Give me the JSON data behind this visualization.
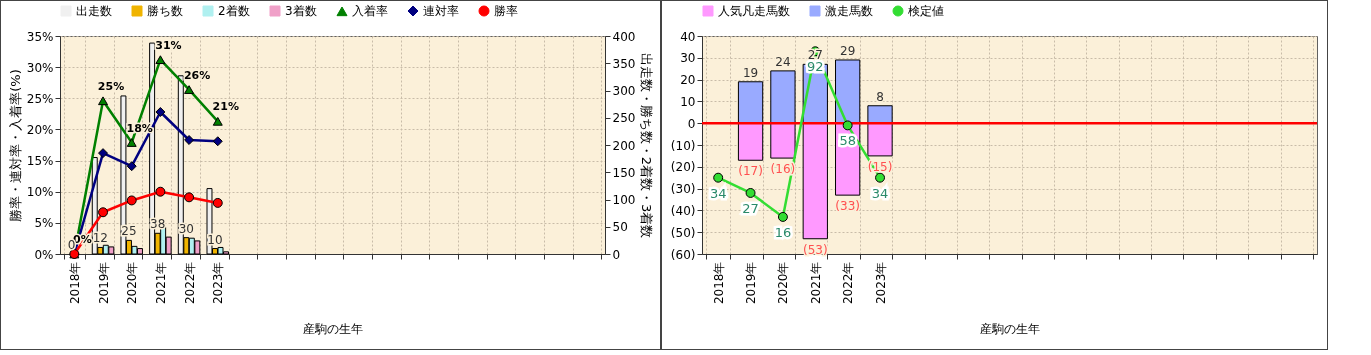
{
  "chart_data": [
    {
      "type": "bar",
      "xlabel": "産駒の生年",
      "ylabel": "勝率・連対率・入着率(%)",
      "y2label": "出走数・勝ち数・2着数・3着数",
      "categories": [
        "2018年",
        "2019年",
        "2020年",
        "2021年",
        "2022年",
        "2023年",
        null,
        null,
        null,
        null,
        null,
        null,
        null,
        null,
        null,
        null,
        null,
        null,
        null
      ],
      "series": [
        {
          "name": "出走数",
          "color": "#f0f0f0",
          "axis": "y2",
          "values": [
            0,
            177,
            290,
            387,
            327,
            120,
            null,
            null,
            null,
            null,
            null,
            null,
            null,
            null,
            null,
            null,
            null,
            null,
            null
          ]
        },
        {
          "name": "勝ち数",
          "color": "#f0b400",
          "axis": "y2",
          "values": [
            0,
            12,
            25,
            38,
            30,
            10,
            null,
            null,
            null,
            null,
            null,
            null,
            null,
            null,
            null,
            null,
            null,
            null,
            null
          ],
          "value_labels": [
            "0",
            "12",
            "25",
            "38",
            "30",
            "10",
            null,
            null,
            null,
            null,
            null,
            null,
            null,
            null,
            null,
            null,
            null,
            null,
            null
          ]
        },
        {
          "name": "2着数",
          "color": "#b0f0f0",
          "axis": "y2",
          "values": [
            0,
            16,
            14,
            49,
            29,
            12,
            null,
            null,
            null,
            null,
            null,
            null,
            null,
            null,
            null,
            null,
            null,
            null,
            null
          ]
        },
        {
          "name": "3着数",
          "color": "#f0a0c8",
          "axis": "y2",
          "values": [
            0,
            13,
            10,
            31,
            24,
            4,
            null,
            null,
            null,
            null,
            null,
            null,
            null,
            null,
            null,
            null,
            null,
            null,
            null
          ]
        },
        {
          "name": "入着率",
          "type": "line",
          "color": "#008000",
          "marker": "triangle",
          "values": [
            0,
            24.6,
            17.9,
            31.2,
            26.4,
            21.3,
            null,
            null,
            null,
            null,
            null,
            null,
            null,
            null,
            null,
            null,
            null,
            null,
            null
          ],
          "value_labels": [
            "0%",
            "25%",
            "18%",
            "31%",
            "26%",
            "21%",
            null,
            null,
            null,
            null,
            null,
            null,
            null,
            null,
            null,
            null,
            null,
            null,
            null
          ]
        },
        {
          "name": "連対率",
          "type": "line",
          "color": "#000080",
          "marker": "diamond",
          "values": [
            0,
            16.2,
            14.1,
            22.8,
            18.3,
            18.1,
            null,
            null,
            null,
            null,
            null,
            null,
            null,
            null,
            null,
            null,
            null,
            null,
            null
          ]
        },
        {
          "name": "勝率",
          "type": "line",
          "color": "#ff0000",
          "marker": "circle",
          "values": [
            0,
            6.7,
            8.6,
            10.0,
            9.1,
            8.2,
            null,
            null,
            null,
            null,
            null,
            null,
            null,
            null,
            null,
            null,
            null,
            null,
            null
          ]
        }
      ],
      "ylim": [
        0,
        35
      ],
      "yticks": [
        {
          "value": 0,
          "label": "0%"
        },
        {
          "value": 5,
          "label": "5%"
        },
        {
          "value": 10,
          "label": "10%"
        },
        {
          "value": 15,
          "label": "15%"
        },
        {
          "value": 20,
          "label": "20%"
        },
        {
          "value": 25,
          "label": "25%"
        },
        {
          "value": 30,
          "label": "30%"
        },
        {
          "value": 35,
          "label": "35%"
        }
      ],
      "y2lim": [
        0,
        400
      ],
      "y2ticks": [
        0,
        50,
        100,
        150,
        200,
        250,
        300,
        350,
        400
      ],
      "grid": true,
      "legend": "top"
    },
    {
      "type": "bar",
      "stacked": true,
      "xlabel": "産駒の生年",
      "categories": [
        "2018年",
        "2019年",
        "2020年",
        "2021年",
        "2022年",
        "2023年",
        null,
        null,
        null,
        null,
        null,
        null,
        null,
        null,
        null,
        null,
        null,
        null,
        null
      ],
      "series": [
        {
          "name": "人気凡走馬数",
          "color": "#ff99ff",
          "values": [
            null,
            -17,
            -16,
            -53,
            -33,
            -15,
            null,
            null,
            null,
            null,
            null,
            null,
            null,
            null,
            null,
            null,
            null,
            null,
            null
          ],
          "value_labels": [
            null,
            "(17)",
            "(16)",
            "(53)",
            "(33)",
            "(15)",
            null,
            null,
            null,
            null,
            null,
            null,
            null,
            null,
            null,
            null,
            null,
            null,
            null
          ]
        },
        {
          "name": "激走馬数",
          "color": "#99aaff",
          "values": [
            null,
            19,
            24,
            27,
            29,
            8,
            null,
            null,
            null,
            null,
            null,
            null,
            null,
            null,
            null,
            null,
            null,
            null,
            null
          ],
          "value_labels": [
            null,
            "19",
            "24",
            "27",
            "29",
            "8",
            null,
            null,
            null,
            null,
            null,
            null,
            null,
            null,
            null,
            null,
            null,
            null,
            null
          ]
        },
        {
          "name": "検定値",
          "type": "line",
          "color": "#33dd33",
          "marker": "circle",
          "axis": "y2",
          "values": [
            34,
            27,
            16,
            92,
            58,
            34,
            null,
            null,
            null,
            null,
            null,
            null,
            null,
            null,
            null,
            null,
            null,
            null,
            null
          ],
          "value_labels": [
            "34",
            "27",
            "16",
            "92",
            "58",
            "34",
            null,
            null,
            null,
            null,
            null,
            null,
            null,
            null,
            null,
            null,
            null,
            null,
            null
          ]
        }
      ],
      "ylim": [
        -60,
        40
      ],
      "yticks": [
        {
          "value": -60,
          "label": "(60)"
        },
        {
          "value": -50,
          "label": "(50)"
        },
        {
          "value": -40,
          "label": "(40)"
        },
        {
          "value": -30,
          "label": "(30)"
        },
        {
          "value": -20,
          "label": "(20)"
        },
        {
          "value": -10,
          "label": "(10)"
        },
        0,
        10,
        20,
        30,
        40
      ],
      "y2lim": [
        -1,
        99
      ],
      "ref_lines": [
        {
          "axis": "y",
          "value": 0,
          "color": "#ff0000"
        }
      ],
      "grid": true,
      "legend": "top"
    }
  ]
}
